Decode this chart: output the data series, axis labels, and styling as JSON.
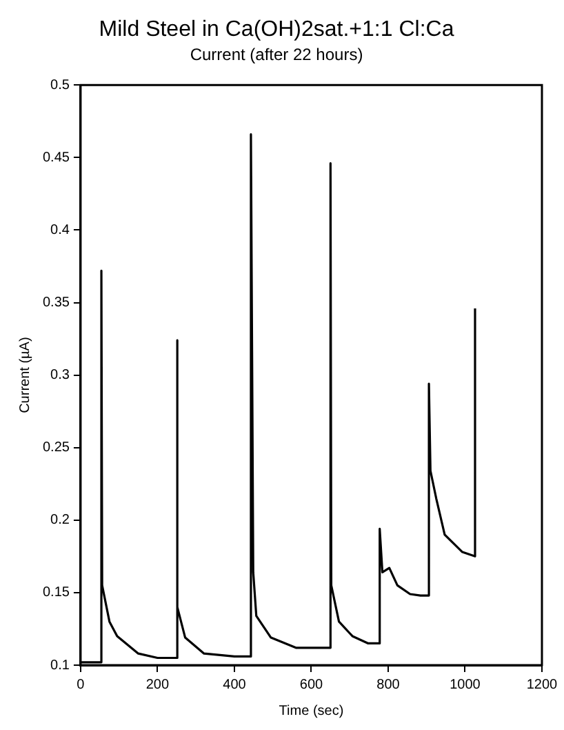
{
  "chart_data": {
    "type": "line",
    "title": "Mild Steel in Ca(OH)2sat.+1:1 Cl:Ca",
    "subtitle": "Current (after 22 hours)",
    "xlabel": "Time (sec)",
    "ylabel": "Current (µA)",
    "x": [
      0,
      54,
      54,
      56,
      75,
      95,
      150,
      200,
      250,
      250,
      253,
      272,
      321,
      400,
      443,
      443,
      449,
      457,
      495,
      560,
      650,
      650,
      652,
      672,
      707,
      748,
      778,
      778,
      785,
      803,
      824,
      857,
      884,
      906,
      906,
      910,
      925,
      947,
      993,
      1026,
      1026
    ],
    "values": [
      0.102,
      0.102,
      0.372,
      0.155,
      0.13,
      0.12,
      0.108,
      0.105,
      0.105,
      0.324,
      0.14,
      0.119,
      0.108,
      0.106,
      0.106,
      0.466,
      0.164,
      0.134,
      0.119,
      0.112,
      0.112,
      0.446,
      0.155,
      0.13,
      0.12,
      0.115,
      0.115,
      0.194,
      0.164,
      0.167,
      0.155,
      0.149,
      0.148,
      0.148,
      0.294,
      0.234,
      0.215,
      0.19,
      0.178,
      0.175,
      0.346
    ],
    "color": "#000000",
    "marker": "none",
    "line_style": "solid",
    "grid": false,
    "legend": false,
    "xlim": [
      0,
      1200
    ],
    "xticks": [
      0,
      200,
      400,
      600,
      800,
      1000,
      1200
    ],
    "ylim": [
      0.1,
      0.5
    ],
    "yticks": [
      0.1,
      0.15,
      0.2,
      0.25,
      0.3,
      0.35,
      0.4,
      0.45,
      0.5
    ]
  }
}
